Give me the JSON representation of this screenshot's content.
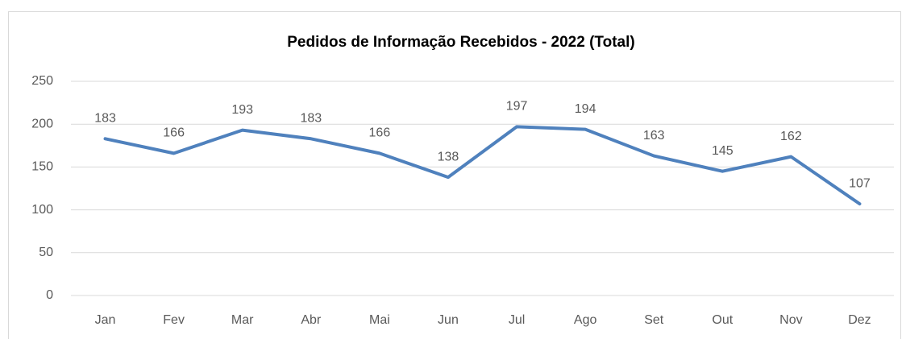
{
  "chart_data": {
    "type": "line",
    "title": "Pedidos de Informação Recebidos - 2022 (Total)",
    "categories": [
      "Jan",
      "Fev",
      "Mar",
      "Abr",
      "Mai",
      "Jun",
      "Jul",
      "Ago",
      "Set",
      "Out",
      "Nov",
      "Dez"
    ],
    "series": [
      {
        "name": "Total",
        "color": "#4f81bd",
        "values": [
          183,
          166,
          193,
          183,
          166,
          138,
          197,
          194,
          163,
          145,
          162,
          107
        ]
      }
    ],
    "ylim": [
      0,
      250
    ],
    "yticks": [
      0,
      50,
      100,
      150,
      200,
      250
    ],
    "grid": true
  }
}
